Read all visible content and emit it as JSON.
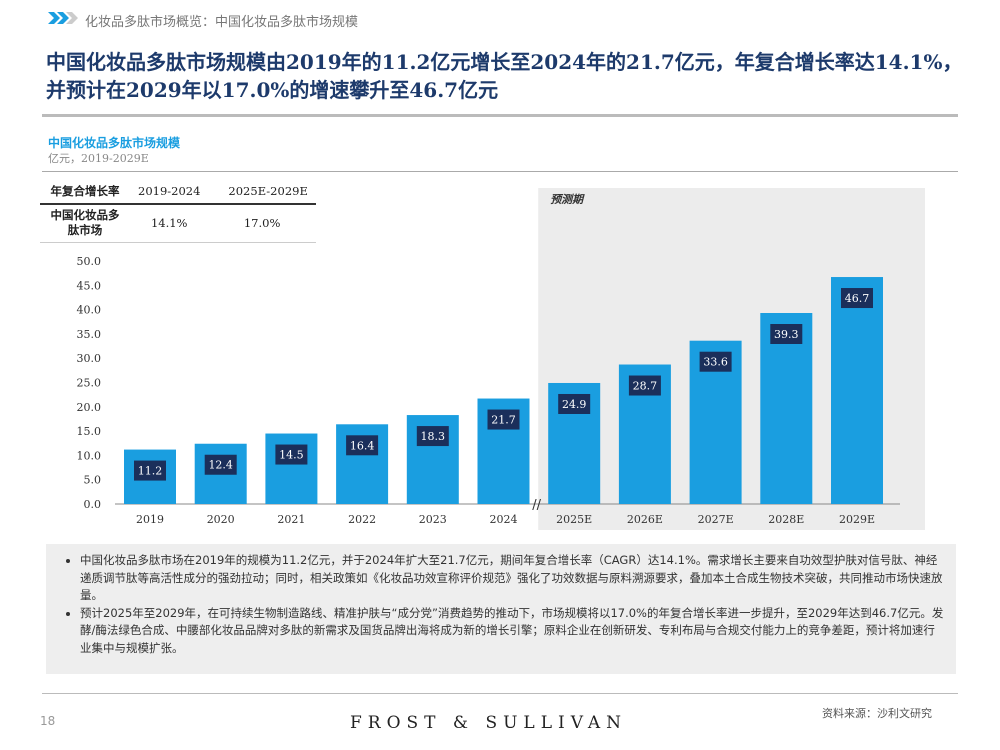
{
  "header": {
    "breadcrumb": "化妆品多肽市场概览：中国化妆品多肽市场规模",
    "title": "中国化妆品多肽市场规模由2019年的11.2亿元增长至2024年的21.7亿元，年复合增长率达14.1%，并预计在2029年以17.0%的增速攀升至46.7亿元"
  },
  "cagr_table": {
    "headers": [
      "年复合增长率",
      "2019-2024",
      "2025E-2029E"
    ],
    "row": [
      "中国化妆品多肽市场",
      "14.1%",
      "17.0%"
    ]
  },
  "chart_data": {
    "type": "bar",
    "title": "中国化妆品多肽市场规模",
    "subtitle": "亿元，2019-2029E",
    "categories": [
      "2019",
      "2020",
      "2021",
      "2022",
      "2023",
      "2024",
      "2025E",
      "2026E",
      "2027E",
      "2028E",
      "2029E"
    ],
    "values": [
      11.2,
      12.4,
      14.5,
      16.4,
      18.3,
      21.7,
      24.9,
      28.7,
      33.6,
      39.3,
      46.7
    ],
    "data_labels": [
      "11.2",
      "12.4",
      "14.5",
      "16.4",
      "18.3",
      "21.7",
      "24.9",
      "28.7",
      "33.6",
      "39.3",
      "46.7"
    ],
    "ylim": [
      0,
      50
    ],
    "yticks": [
      "0.0",
      "5.0",
      "10.0",
      "15.0",
      "20.0",
      "25.0",
      "30.0",
      "35.0",
      "40.0",
      "45.0",
      "50.0"
    ],
    "forecast_label": "预测期",
    "forecast_start": "2025E",
    "grid": false,
    "colors": {
      "bar": "#1a9ee0",
      "label_box": "#1b2f5b",
      "forecast_bg": "#ececec"
    }
  },
  "notes": [
    "中国化妆品多肽市场在2019年的规模为11.2亿元，并于2024年扩大至21.7亿元，期间年复合增长率（CAGR）达14.1%。需求增长主要来自功效型护肤对信号肽、神经递质调节肽等高活性成分的强劲拉动；同时，相关政策如《化妆品功效宣称评价规范》强化了功效数据与原料溯源要求，叠加本土合成生物技术突破，共同推动市场快速放量。",
    "预计2025年至2029年，在可持续生物制造路线、精准护肤与“成分党”消费趋势的推动下，市场规模将以17.0%的年复合增长率进一步提升，至2029年达到46.7亿元。发酵/酶法绿色合成、中腰部化妆品品牌对多肽的新需求及国货品牌出海将成为新的增长引擎；原料企业在创新研发、专利布局与合规交付能力上的竞争差距，预计将加速行业集中与规模扩张。"
  ],
  "footer": {
    "page": "18",
    "logo": "FROST & SULLIVAN",
    "source": "资料来源：沙利文研究"
  }
}
